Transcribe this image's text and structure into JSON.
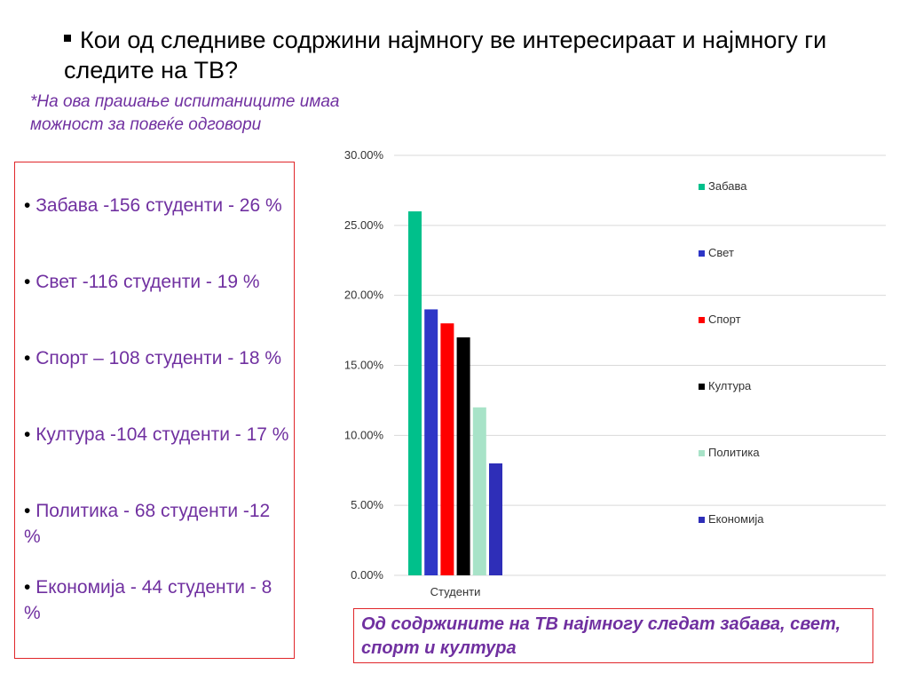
{
  "title": "Кои од следниве содржини најмногу ве интересираат и најмногу ги следите на ТВ?",
  "note": "*На ова прашање испитаниците имаа можност за повеќе одговори",
  "list": [
    {
      "text": "Забава -156 студенти - 26 %"
    },
    {
      "text": "Свет -116 студенти - 19 %"
    },
    {
      "text": "Спорт – 108 студенти - 18 %"
    },
    {
      "text": "Култура -104 студенти - 17 %"
    },
    {
      "text": "Политика - 68 студенти -12 %"
    },
    {
      "text": "Економија - 44 студенти - 8 %"
    }
  ],
  "conclusion": "Од содржините на ТВ најмногу следат забава, свет, спорт и култура",
  "chart_data": {
    "type": "bar",
    "categories": [
      "Студенти"
    ],
    "series": [
      {
        "name": "Забава",
        "values": [
          26
        ],
        "color": "#00c08b"
      },
      {
        "name": "Свет",
        "values": [
          19
        ],
        "color": "#2e36c7"
      },
      {
        "name": "Спорт",
        "values": [
          18
        ],
        "color": "#ff0000"
      },
      {
        "name": "Култура",
        "values": [
          17
        ],
        "color": "#000000"
      },
      {
        "name": "Политика",
        "values": [
          12
        ],
        "color": "#a8e3c8"
      },
      {
        "name": "Економија",
        "values": [
          8
        ],
        "color": "#2e2eb8"
      }
    ],
    "yticks": [
      "0.00%",
      "5.00%",
      "10.00%",
      "15.00%",
      "20.00%",
      "25.00%",
      "30.00%"
    ],
    "ylim": [
      0,
      30
    ],
    "ytick_step": 5,
    "grid": true,
    "legend": "right"
  }
}
